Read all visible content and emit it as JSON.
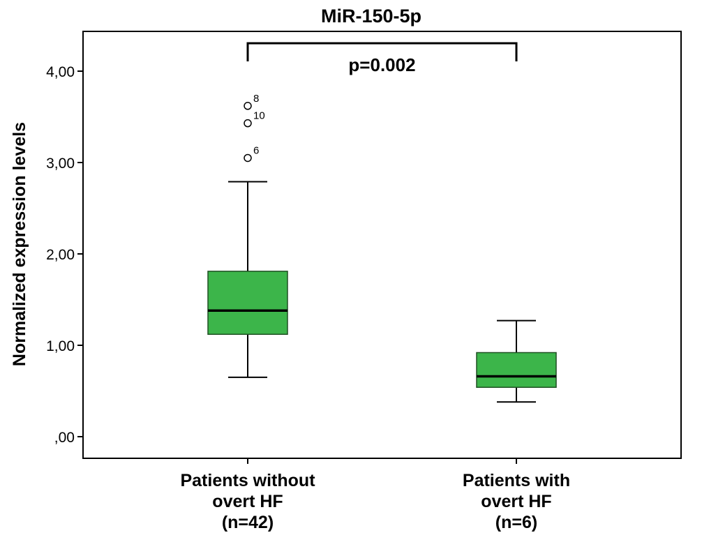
{
  "chart_data": {
    "type": "boxplot",
    "title": "MiR-150-5p",
    "ylabel": "Normalized expression levels",
    "xlabel": "",
    "ylim": [
      -0.2,
      4.4
    ],
    "yticks": [
      0,
      1,
      2,
      3,
      4
    ],
    "ytick_labels": [
      ",00",
      "1,00",
      "2,00",
      "3,00",
      "4,00"
    ],
    "grid": false,
    "box_color": "#3cb54a",
    "groups": [
      {
        "label_lines": [
          "Patients without",
          "overt HF",
          "(n=42)"
        ],
        "whisker_low": 0.65,
        "q1": 1.12,
        "median": 1.38,
        "q3": 1.81,
        "whisker_high": 2.79,
        "outliers": [
          {
            "value": 3.62,
            "label": "8"
          },
          {
            "value": 3.43,
            "label": "10"
          },
          {
            "value": 3.05,
            "label": "6"
          }
        ]
      },
      {
        "label_lines": [
          "Patients with",
          "overt HF",
          "(n=6)"
        ],
        "whisker_low": 0.38,
        "q1": 0.54,
        "median": 0.66,
        "q3": 0.92,
        "whisker_high": 1.27,
        "outliers": []
      }
    ],
    "annotation": {
      "text": "p=0.002",
      "bracket_from": 0,
      "bracket_to": 1
    }
  }
}
